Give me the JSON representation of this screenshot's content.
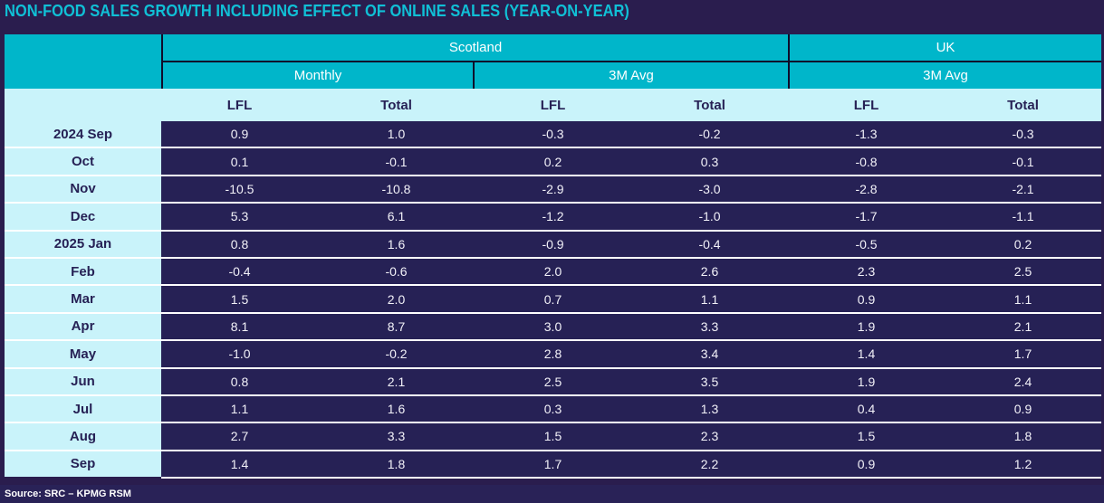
{
  "title": "NON-FOOD SALES GROWTH INCLUDING EFFECT OF ONLINE SALES (YEAR-ON-YEAR)",
  "footer": {
    "source": "Source: SRC – KPMG RSM"
  },
  "colors": {
    "background": "#2a1d4e",
    "title_text": "#10c0d6",
    "header_teal": "#00b6ca",
    "header_border": "#0f0c2a",
    "light_cyan": "#c9f3fa",
    "row_navy": "#262155",
    "separator": "#ffffff",
    "footer_bg": "#292257"
  },
  "chart_data": {
    "type": "table",
    "title": "NON-FOOD SALES GROWTH INCLUDING EFFECT OF ONLINE SALES (YEAR-ON-YEAR)",
    "region_groups": [
      {
        "label": "Scotland",
        "span": 4
      },
      {
        "label": "UK",
        "span": 2
      }
    ],
    "period_groups": [
      {
        "label": "Monthly",
        "span": 2
      },
      {
        "label": "3M Avg",
        "span": 2
      },
      {
        "label": "3M Avg",
        "span": 2
      }
    ],
    "measure_headers": [
      "LFL",
      "Total",
      "LFL",
      "Total",
      "LFL",
      "Total"
    ],
    "rows": [
      {
        "label": "2024 Sep",
        "values": [
          "0.9",
          "1.0",
          "-0.3",
          "-0.2",
          "-1.3",
          "-0.3"
        ]
      },
      {
        "label": "Oct",
        "values": [
          "0.1",
          "-0.1",
          "0.2",
          "0.3",
          "-0.8",
          "-0.1"
        ]
      },
      {
        "label": "Nov",
        "values": [
          "-10.5",
          "-10.8",
          "-2.9",
          "-3.0",
          "-2.8",
          "-2.1"
        ]
      },
      {
        "label": "Dec",
        "values": [
          "5.3",
          "6.1",
          "-1.2",
          "-1.0",
          "-1.7",
          "-1.1"
        ]
      },
      {
        "label": "2025 Jan",
        "values": [
          "0.8",
          "1.6",
          "-0.9",
          "-0.4",
          "-0.5",
          "0.2"
        ]
      },
      {
        "label": "Feb",
        "values": [
          "-0.4",
          "-0.6",
          "2.0",
          "2.6",
          "2.3",
          "2.5"
        ]
      },
      {
        "label": "Mar",
        "values": [
          "1.5",
          "2.0",
          "0.7",
          "1.1",
          "0.9",
          "1.1"
        ]
      },
      {
        "label": "Apr",
        "values": [
          "8.1",
          "8.7",
          "3.0",
          "3.3",
          "1.9",
          "2.1"
        ]
      },
      {
        "label": "May",
        "values": [
          "-1.0",
          "-0.2",
          "2.8",
          "3.4",
          "1.4",
          "1.7"
        ]
      },
      {
        "label": "Jun",
        "values": [
          "0.8",
          "2.1",
          "2.5",
          "3.5",
          "1.9",
          "2.4"
        ]
      },
      {
        "label": "Jul",
        "values": [
          "1.1",
          "1.6",
          "0.3",
          "1.3",
          "0.4",
          "0.9"
        ]
      },
      {
        "label": "Aug",
        "values": [
          "2.7",
          "3.3",
          "1.5",
          "2.3",
          "1.5",
          "1.8"
        ]
      },
      {
        "label": "Sep",
        "values": [
          "1.4",
          "1.8",
          "1.7",
          "2.2",
          "0.9",
          "1.2"
        ]
      }
    ]
  }
}
